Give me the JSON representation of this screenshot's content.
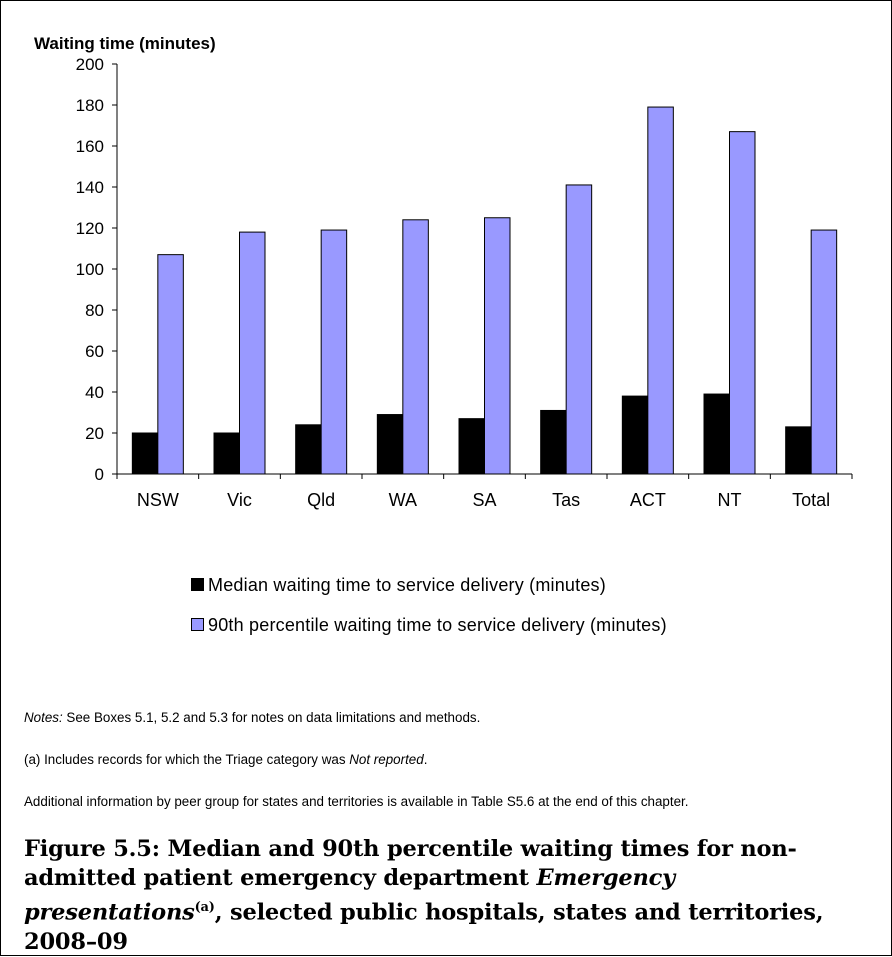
{
  "chart_data": {
    "type": "bar",
    "ylabel": "Waiting time (minutes)",
    "xlabel": "",
    "ylim": [
      0,
      200
    ],
    "ytick_step": 20,
    "categories": [
      "NSW",
      "Vic",
      "Qld",
      "WA",
      "SA",
      "Tas",
      "ACT",
      "NT",
      "Total"
    ],
    "series": [
      {
        "name": "Median waiting time to service delivery (minutes)",
        "color": "#000000",
        "values": [
          20,
          20,
          24,
          29,
          27,
          31,
          38,
          39,
          23
        ]
      },
      {
        "name": "90th percentile waiting time to service delivery (minutes)",
        "color": "#9999ff",
        "values": [
          107,
          118,
          119,
          124,
          125,
          141,
          179,
          167,
          119
        ]
      }
    ],
    "legend_position": "bottom",
    "grid": false
  },
  "notes": {
    "notes_label": "Notes:",
    "notes_text": " See Boxes 5.1, 5.2 and 5.3 for notes on data limitations and methods.",
    "footnote_a_text": "(a) Includes records for which the Triage category was ",
    "footnote_a_italic": "Not reported",
    "footnote_a_end": ".",
    "additional": "Additional information by peer group for states and territories is available in Table S5.6 at the end of this chapter."
  },
  "caption": {
    "part1": "Figure 5.5: Median and 90th percentile waiting times for non-admitted patient emergency department ",
    "italic": "Emergency presentations",
    "sup": "(a)",
    "part2": ", selected public hospitals, states and territories, 2008–09"
  }
}
